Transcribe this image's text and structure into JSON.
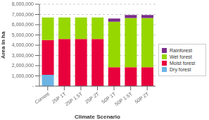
{
  "chart_data": {
    "type": "bar",
    "stacked": true,
    "xlabel": "Climate Scenario",
    "ylabel": "Area in ha",
    "categories": [
      "Current",
      "25P 1T",
      "25P 1.5T",
      "25P 2T",
      "50P 1T",
      "50P 1.5T",
      "50P 2T"
    ],
    "series": [
      {
        "name": "Dry forest",
        "color": "#6cb4e4",
        "values": [
          1100000,
          0,
          0,
          0,
          0,
          0,
          0
        ]
      },
      {
        "name": "Moist forest",
        "color": "#e8003d",
        "values": [
          3400000,
          4600000,
          4600000,
          4600000,
          1850000,
          1850000,
          1850000
        ]
      },
      {
        "name": "Wet forest",
        "color": "#97d700",
        "values": [
          2200000,
          2100000,
          2100000,
          2100000,
          4450000,
          4800000,
          4800000
        ]
      },
      {
        "name": "Rainforest",
        "color": "#7b2d8b",
        "values": [
          0,
          0,
          0,
          0,
          300000,
          300000,
          300000
        ]
      }
    ],
    "ylim": [
      0,
      8000000
    ],
    "yticks": [
      {
        "value": 0,
        "label": "-"
      },
      {
        "value": 1000000,
        "label": "1,000,000"
      },
      {
        "value": 2000000,
        "label": "2,000,000"
      },
      {
        "value": 3000000,
        "label": "3,000,000"
      },
      {
        "value": 4000000,
        "label": "4,000,000"
      },
      {
        "value": 5000000,
        "label": "5,000,000"
      },
      {
        "value": 6000000,
        "label": "6,000,000"
      },
      {
        "value": 7000000,
        "label": "7,000,000"
      },
      {
        "value": 8000000,
        "label": "8,000,000"
      }
    ],
    "grid": true,
    "legend": "right"
  }
}
